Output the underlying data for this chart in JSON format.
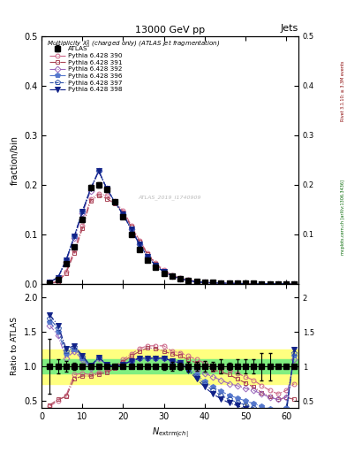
{
  "title_top": "13000 GeV pp",
  "title_right": "Jets",
  "main_title": "Multiplicity $\\lambda_0^0$ (charged only) (ATLAS jet fragmentation)",
  "ylabel_main": "fraction/bin",
  "ylabel_ratio": "Ratio to ATLAS",
  "xlabel": "$N_{\\mathrm{extrm}|ch|}$",
  "rivet_label": "Rivet 3.1.10; ≥ 3.3M events",
  "mcplots_label": "mcplots.cern.ch [arXiv:1306.3436]",
  "watermark": "ATLAS_2019_I1740909",
  "xlim": [
    0,
    63
  ],
  "ylim_main": [
    0.0,
    0.5
  ],
  "ylim_ratio": [
    0.4,
    2.2
  ],
  "atlas_x": [
    2,
    4,
    6,
    8,
    10,
    12,
    14,
    16,
    18,
    20,
    22,
    24,
    26,
    28,
    30,
    32,
    34,
    36,
    38,
    40,
    42,
    44,
    46,
    48,
    50,
    52,
    54,
    56,
    58,
    60,
    62
  ],
  "atlas_y": [
    0.002,
    0.008,
    0.04,
    0.075,
    0.13,
    0.195,
    0.2,
    0.19,
    0.165,
    0.135,
    0.1,
    0.07,
    0.048,
    0.033,
    0.022,
    0.015,
    0.01,
    0.007,
    0.005,
    0.004,
    0.003,
    0.002,
    0.002,
    0.001,
    0.001,
    0.001,
    0.0005,
    0.0005,
    0.0001,
    0.0001,
    0.0001
  ],
  "atlas_yerr": [
    0.0008,
    0.0008,
    0.003,
    0.004,
    0.005,
    0.005,
    0.005,
    0.005,
    0.004,
    0.003,
    0.003,
    0.002,
    0.002,
    0.001,
    0.001,
    0.001,
    0.0005,
    0.0005,
    0.0003,
    0.0003,
    0.0002,
    0.0002,
    0.0001,
    0.0001,
    0.0001,
    0.0001,
    0.0001,
    0.0001,
    0.0,
    0.0,
    0.0
  ],
  "mc_x": [
    2,
    4,
    6,
    8,
    10,
    12,
    14,
    16,
    18,
    20,
    22,
    24,
    26,
    28,
    30,
    32,
    34,
    36,
    38,
    40,
    42,
    44,
    46,
    48,
    50,
    52,
    54,
    56,
    58,
    60,
    62
  ],
  "series": [
    {
      "label": "Pythia 6.428 390",
      "color": "#cc6688",
      "linestyle": "-.",
      "marker": "o",
      "fillstyle": "none",
      "markersize": 3.5,
      "y_main": [
        0.001,
        0.005,
        0.025,
        0.068,
        0.118,
        0.172,
        0.182,
        0.178,
        0.165,
        0.148,
        0.118,
        0.088,
        0.062,
        0.042,
        0.028,
        0.018,
        0.012,
        0.008,
        0.005,
        0.003,
        0.002,
        0.0015,
        0.001,
        0.0008,
        0.0005,
        0.0003,
        0.0002,
        0.0001,
        0.0,
        0.0,
        0.0
      ],
      "y_ratio": [
        0.42,
        0.5,
        0.58,
        0.88,
        0.9,
        0.88,
        0.91,
        0.94,
        1.0,
        1.1,
        1.18,
        1.26,
        1.3,
        1.3,
        1.3,
        1.22,
        1.2,
        1.15,
        1.1,
        1.05,
        1.0,
        1.0,
        0.95,
        0.9,
        0.85,
        0.8,
        0.72,
        0.65,
        0.6,
        0.65,
        0.75
      ]
    },
    {
      "label": "Pythia 6.428 391",
      "color": "#aa4455",
      "linestyle": "-.",
      "marker": "s",
      "fillstyle": "none",
      "markersize": 3.5,
      "y_main": [
        0.001,
        0.004,
        0.022,
        0.062,
        0.112,
        0.168,
        0.178,
        0.172,
        0.162,
        0.145,
        0.115,
        0.085,
        0.06,
        0.04,
        0.026,
        0.017,
        0.011,
        0.007,
        0.0045,
        0.003,
        0.002,
        0.0014,
        0.001,
        0.0007,
        0.0004,
        0.0003,
        0.0002,
        0.0001,
        0.0,
        0.0,
        0.0
      ],
      "y_ratio": [
        0.44,
        0.52,
        0.56,
        0.82,
        0.86,
        0.86,
        0.89,
        0.91,
        0.98,
        1.07,
        1.15,
        1.22,
        1.27,
        1.26,
        1.22,
        1.18,
        1.15,
        1.1,
        1.05,
        1.0,
        0.95,
        0.92,
        0.88,
        0.82,
        0.76,
        0.7,
        0.62,
        0.56,
        0.52,
        0.55,
        0.52
      ]
    },
    {
      "label": "Pythia 6.428 392",
      "color": "#9966bb",
      "linestyle": "-.",
      "marker": "D",
      "fillstyle": "none",
      "markersize": 3.5,
      "y_main": [
        0.004,
        0.012,
        0.045,
        0.092,
        0.142,
        0.188,
        0.228,
        0.192,
        0.165,
        0.14,
        0.11,
        0.08,
        0.055,
        0.037,
        0.024,
        0.016,
        0.01,
        0.007,
        0.004,
        0.003,
        0.002,
        0.0015,
        0.001,
        0.0008,
        0.0005,
        0.0003,
        0.0002,
        0.0001,
        0.0,
        0.0,
        0.0
      ],
      "y_ratio": [
        1.6,
        1.45,
        1.12,
        1.22,
        1.1,
        0.97,
        1.12,
        1.01,
        1.0,
        1.03,
        1.08,
        1.12,
        1.12,
        1.12,
        1.12,
        1.08,
        1.05,
        1.0,
        0.95,
        0.9,
        0.85,
        0.8,
        0.75,
        0.72,
        0.68,
        0.65,
        0.6,
        0.55,
        0.52,
        0.55,
        1.1
      ]
    },
    {
      "label": "Pythia 6.428 396",
      "color": "#5577cc",
      "linestyle": "-.",
      "marker": "p",
      "fillstyle": "full",
      "markersize": 4,
      "y_main": [
        0.004,
        0.013,
        0.048,
        0.096,
        0.146,
        0.192,
        0.228,
        0.192,
        0.165,
        0.14,
        0.11,
        0.08,
        0.055,
        0.037,
        0.024,
        0.016,
        0.01,
        0.007,
        0.004,
        0.003,
        0.002,
        0.0015,
        0.001,
        0.0008,
        0.0005,
        0.0003,
        0.0002,
        0.0001,
        0.0,
        0.0,
        0.0
      ],
      "y_ratio": [
        1.65,
        1.5,
        1.18,
        1.25,
        1.12,
        0.99,
        1.13,
        1.02,
        1.0,
        1.03,
        1.08,
        1.12,
        1.12,
        1.12,
        1.12,
        1.08,
        1.05,
        0.98,
        0.88,
        0.78,
        0.7,
        0.64,
        0.58,
        0.54,
        0.5,
        0.46,
        0.42,
        0.38,
        0.36,
        0.4,
        1.15
      ]
    },
    {
      "label": "Pythia 6.428 397",
      "color": "#3355aa",
      "linestyle": "--",
      "marker": "p",
      "fillstyle": "none",
      "markersize": 4,
      "y_main": [
        0.004,
        0.013,
        0.048,
        0.096,
        0.146,
        0.192,
        0.228,
        0.192,
        0.165,
        0.14,
        0.11,
        0.08,
        0.055,
        0.037,
        0.024,
        0.016,
        0.01,
        0.007,
        0.004,
        0.003,
        0.002,
        0.0015,
        0.001,
        0.0008,
        0.0005,
        0.0003,
        0.0002,
        0.0001,
        0.0,
        0.0,
        0.0
      ],
      "y_ratio": [
        1.7,
        1.55,
        1.22,
        1.28,
        1.14,
        1.0,
        1.13,
        1.02,
        1.0,
        1.03,
        1.08,
        1.12,
        1.12,
        1.12,
        1.12,
        1.08,
        1.05,
        0.96,
        0.85,
        0.74,
        0.65,
        0.58,
        0.52,
        0.48,
        0.44,
        0.4,
        0.36,
        0.33,
        0.31,
        0.35,
        1.2
      ]
    },
    {
      "label": "Pythia 6.428 398",
      "color": "#112288",
      "linestyle": "-.",
      "marker": "v",
      "fillstyle": "full",
      "markersize": 4,
      "y_main": [
        0.004,
        0.013,
        0.048,
        0.096,
        0.146,
        0.192,
        0.228,
        0.192,
        0.165,
        0.14,
        0.11,
        0.08,
        0.055,
        0.037,
        0.024,
        0.016,
        0.01,
        0.007,
        0.004,
        0.003,
        0.002,
        0.0015,
        0.001,
        0.0008,
        0.0005,
        0.0003,
        0.0002,
        0.0001,
        0.0,
        0.0,
        0.0
      ],
      "y_ratio": [
        1.75,
        1.6,
        1.26,
        1.3,
        1.16,
        1.01,
        1.13,
        1.03,
        1.0,
        1.03,
        1.08,
        1.12,
        1.12,
        1.12,
        1.12,
        1.08,
        1.05,
        0.94,
        0.82,
        0.7,
        0.6,
        0.53,
        0.47,
        0.43,
        0.38,
        0.35,
        0.31,
        0.29,
        0.27,
        0.3,
        1.25
      ]
    }
  ],
  "band_green_ratio": [
    0.9,
    1.1
  ],
  "band_yellow_ratio": [
    0.75,
    1.25
  ],
  "bg_color": "#ffffff"
}
